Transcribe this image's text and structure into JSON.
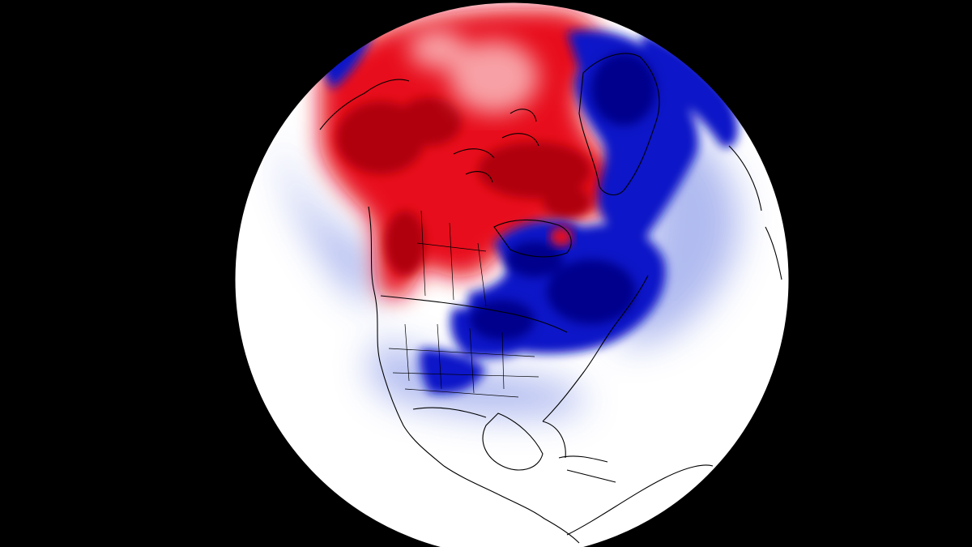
{
  "map": {
    "projection": "orthographic-globe",
    "field": "temperature-anomaly",
    "colors": {
      "background": "#000000",
      "neutral": "#ffffff",
      "warm_strong": "#b0000a",
      "warm": "#e8101c",
      "warm_light": "#f7a0a5",
      "cold_strong": "#00008c",
      "cold": "#0a14c8",
      "cold_light": "#a8b4ee",
      "coastline": "#000000"
    },
    "regions": [
      {
        "name": "alaska-yukon-warm",
        "anomaly": "strong-positive"
      },
      {
        "name": "central-arctic-warm",
        "anomaly": "positive"
      },
      {
        "name": "canadian-archipelago-warm",
        "anomaly": "strong-positive"
      },
      {
        "name": "western-canada-warm",
        "anomaly": "positive"
      },
      {
        "name": "greenland-west-cold",
        "anomaly": "strong-negative"
      },
      {
        "name": "hudson-bay-cold",
        "anomaly": "strong-negative"
      },
      {
        "name": "eastern-canada-cold",
        "anomaly": "strong-negative"
      },
      {
        "name": "northern-plains-cold",
        "anomaly": "negative"
      },
      {
        "name": "siberia-rim-cold",
        "anomaly": "negative"
      },
      {
        "name": "southern-us-neutral",
        "anomaly": "near-zero"
      }
    ]
  }
}
